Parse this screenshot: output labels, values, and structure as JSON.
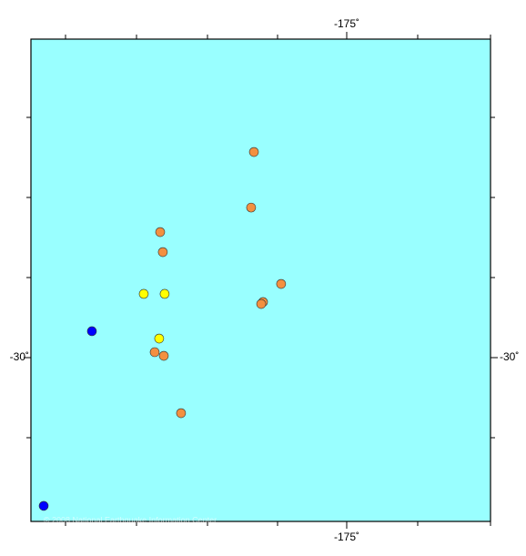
{
  "chart_data": {
    "type": "scatter",
    "credit": "© 2008 National Earthquake Information Center",
    "xlim": [
      -177.253,
      -173.974
    ],
    "ylim": [
      -31.023,
      -28.011
    ],
    "xticks": [
      {
        "value": -175,
        "label": "-175˚"
      }
    ],
    "yticks": [
      {
        "value": -30,
        "label": "-30˚"
      }
    ],
    "series": [
      {
        "color": "#f39040",
        "x": [
          -175.662,
          -175.682,
          -176.331,
          -176.312,
          -175.468,
          -175.597,
          -175.61,
          -176.37,
          -176.305,
          -176.182
        ],
        "values": [
          -28.716,
          -29.063,
          -29.216,
          -29.341,
          -29.54,
          -29.653,
          -29.665,
          -29.966,
          -29.989,
          -30.347
        ]
      },
      {
        "color": "#ffff00",
        "x": [
          -176.448,
          -176.299,
          -176.338
        ],
        "values": [
          -29.602,
          -29.602,
          -29.881
        ]
      },
      {
        "color": "#0000ff",
        "x": [
          -176.818,
          -177.162
        ],
        "values": [
          -29.835,
          -30.926
        ]
      }
    ]
  }
}
